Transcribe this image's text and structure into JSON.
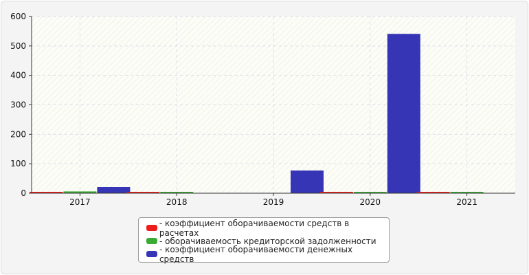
{
  "chart_data": {
    "type": "bar",
    "categories": [
      "2017",
      "2018",
      "2019",
      "2020",
      "2021"
    ],
    "series": [
      {
        "name": "- коэффициент оборачиваемости средств в расчетах",
        "color": "#ee1c1c",
        "values": [
          2,
          2,
          0,
          2,
          2
        ]
      },
      {
        "name": "- оборачиваемость кредиторской задолженности",
        "color": "#3aaa35",
        "values": [
          6,
          2,
          0,
          2,
          2
        ]
      },
      {
        "name": "- коэффициент оборачиваемости денежных средств",
        "color": "#3535b5",
        "values": [
          21,
          0,
          77,
          541,
          0
        ]
      }
    ],
    "ylim": [
      0,
      600
    ],
    "yticks": [
      "0",
      "100",
      "200",
      "300",
      "400",
      "500",
      "600"
    ],
    "grid": true,
    "legend_position": "bottom"
  }
}
